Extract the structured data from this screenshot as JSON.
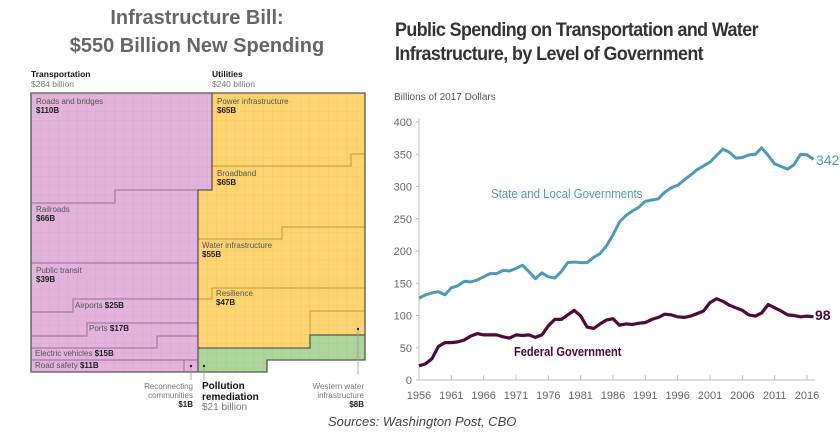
{
  "left": {
    "title_line1": "Infrastructure Bill:",
    "title_line2": "$550 Billion New Spending",
    "groups": {
      "transportation": {
        "name": "Transportation",
        "total": "$284 billion",
        "color": "#e2b3dc"
      },
      "utilities": {
        "name": "Utilities",
        "total": "$240 billion",
        "color": "#fdd470"
      },
      "pollution": {
        "name": "Pollution remediation",
        "name1": "Pollution",
        "name2": "remediation",
        "total": "$21 billion",
        "color": "#acd69a"
      }
    },
    "items": {
      "roads": {
        "label": "Roads and bridges",
        "value": "$110B"
      },
      "railroads": {
        "label": "Railroads",
        "value": "$66B"
      },
      "transit": {
        "label": "Public transit",
        "value": "$39B"
      },
      "airports": {
        "label": "Airports",
        "value": "$25B"
      },
      "ports": {
        "label": "Ports",
        "value": "$17B"
      },
      "ev": {
        "label": "Electric vehicles",
        "value": "$15B"
      },
      "safety": {
        "label": "Road safety",
        "value": "$11B"
      },
      "reconnecting": {
        "label1": "Reconnecting",
        "label2": "communities",
        "value": "$1B"
      },
      "power": {
        "label": "Power infrastructure",
        "value": "$65B"
      },
      "broadband": {
        "label": "Broadband",
        "value": "$65B"
      },
      "water": {
        "label": "Water infrastructure",
        "value": "$55B"
      },
      "resilience": {
        "label": "Resilience",
        "value": "$47B"
      },
      "western": {
        "label1": "Western water",
        "label2": "infrastructure",
        "value": "$8B"
      }
    }
  },
  "chart_data": {
    "type": "line",
    "title": "Public Spending on Transportation and Water Infrastructure, by Level of Government",
    "title_line1": "Public Spending on Transportation and Water",
    "title_line2": "Infrastructure, by Level of Government",
    "ylabel": "Billions of 2017 Dollars",
    "ylim": [
      0,
      400
    ],
    "yticks": [
      "0",
      "50",
      "100",
      "150",
      "200",
      "250",
      "300",
      "350",
      "400"
    ],
    "xticks": [
      "1956",
      "1961",
      "1966",
      "1971",
      "1976",
      "1981",
      "1986",
      "1991",
      "1996",
      "2001",
      "2006",
      "2011",
      "2016"
    ],
    "x_start": 1956,
    "grid": false,
    "series": [
      {
        "name": "State and Local Governments",
        "color": "#4b9bb8",
        "end_label": "342",
        "values": [
          127,
          132,
          135,
          137,
          132,
          143,
          146,
          153,
          152,
          155,
          160,
          165,
          165,
          170,
          169,
          173,
          178,
          168,
          157,
          166,
          160,
          158,
          168,
          182,
          183,
          182,
          182,
          190,
          196,
          208,
          225,
          245,
          255,
          262,
          268,
          277,
          279,
          281,
          291,
          298,
          302,
          310,
          318,
          326,
          332,
          338,
          348,
          358,
          353,
          344,
          345,
          349,
          350,
          360,
          348,
          335,
          331,
          327,
          334,
          350,
          349,
          342
        ]
      },
      {
        "name": "Federal Government",
        "color": "#4d0a3a",
        "end_label": "98",
        "values": [
          22,
          25,
          33,
          52,
          58,
          58,
          59,
          62,
          68,
          72,
          70,
          70,
          70,
          67,
          65,
          70,
          69,
          70,
          66,
          70,
          84,
          94,
          94,
          101,
          108,
          99,
          82,
          80,
          87,
          93,
          95,
          85,
          87,
          86,
          88,
          89,
          94,
          97,
          102,
          101,
          98,
          97,
          99,
          103,
          107,
          120,
          126,
          122,
          116,
          112,
          108,
          101,
          99,
          104,
          117,
          112,
          107,
          101,
          100,
          98,
          99,
          98
        ]
      }
    ]
  },
  "sources": "Sources: Washington Post, CBO"
}
